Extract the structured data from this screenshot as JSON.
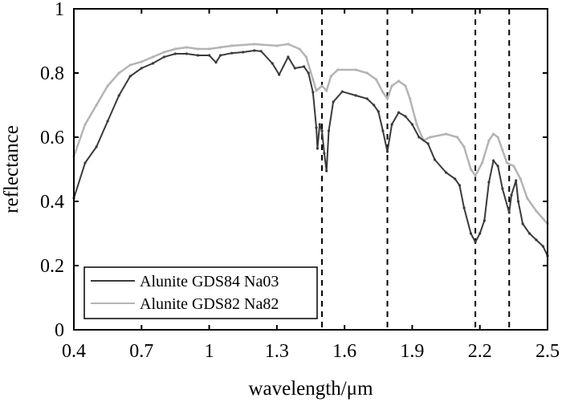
{
  "chart_data": {
    "type": "line",
    "title": "",
    "xlabel": "wavelength/μm",
    "ylabel": "reflectance",
    "xlim": [
      0.4,
      2.5
    ],
    "ylim": [
      0,
      1
    ],
    "xticks": [
      "0.4",
      "0.7",
      "1",
      "1.3",
      "1.6",
      "1.9",
      "2.2",
      "2.5"
    ],
    "yticks": [
      "0",
      "0.2",
      "0.4",
      "0.6",
      "0.8",
      "1"
    ],
    "grid": false,
    "legend_position": "bottom-left",
    "vlines": [
      1.5,
      1.79,
      2.18,
      2.33
    ],
    "series": [
      {
        "name": "Alunite GDS84 Na03",
        "color": "#3a3a3a",
        "x": [
          0.4,
          0.45,
          0.5,
          0.55,
          0.6,
          0.65,
          0.7,
          0.75,
          0.8,
          0.85,
          0.9,
          0.95,
          1.0,
          1.03,
          1.05,
          1.1,
          1.15,
          1.2,
          1.23,
          1.28,
          1.31,
          1.35,
          1.38,
          1.42,
          1.44,
          1.46,
          1.475,
          1.48,
          1.49,
          1.5,
          1.51,
          1.52,
          1.53,
          1.55,
          1.59,
          1.65,
          1.7,
          1.73,
          1.75,
          1.77,
          1.79,
          1.81,
          1.84,
          1.87,
          1.9,
          1.93,
          1.97,
          2.0,
          2.05,
          2.09,
          2.11,
          2.13,
          2.16,
          2.18,
          2.2,
          2.22,
          2.24,
          2.26,
          2.28,
          2.3,
          2.33,
          2.34,
          2.36,
          2.37,
          2.39,
          2.42,
          2.45,
          2.48,
          2.5
        ],
        "y": [
          0.41,
          0.52,
          0.57,
          0.65,
          0.73,
          0.79,
          0.815,
          0.83,
          0.85,
          0.86,
          0.86,
          0.855,
          0.855,
          0.833,
          0.855,
          0.862,
          0.865,
          0.87,
          0.868,
          0.83,
          0.795,
          0.85,
          0.815,
          0.82,
          0.8,
          0.74,
          0.63,
          0.565,
          0.64,
          0.62,
          0.55,
          0.495,
          0.62,
          0.71,
          0.742,
          0.73,
          0.72,
          0.7,
          0.68,
          0.62,
          0.555,
          0.64,
          0.677,
          0.665,
          0.64,
          0.6,
          0.58,
          0.53,
          0.49,
          0.47,
          0.45,
          0.38,
          0.3,
          0.273,
          0.3,
          0.34,
          0.46,
          0.527,
          0.51,
          0.44,
          0.365,
          0.42,
          0.465,
          0.4,
          0.33,
          0.3,
          0.28,
          0.26,
          0.23
        ]
      },
      {
        "name": "Alunite GDS82 Na82",
        "color": "#b4b4b4",
        "x": [
          0.4,
          0.45,
          0.5,
          0.55,
          0.6,
          0.65,
          0.7,
          0.75,
          0.8,
          0.85,
          0.9,
          0.95,
          1.0,
          1.05,
          1.1,
          1.2,
          1.3,
          1.35,
          1.4,
          1.43,
          1.46,
          1.475,
          1.5,
          1.52,
          1.54,
          1.57,
          1.65,
          1.7,
          1.74,
          1.77,
          1.79,
          1.81,
          1.84,
          1.87,
          1.89,
          1.92,
          1.95,
          1.98,
          2.05,
          2.1,
          2.13,
          2.16,
          2.18,
          2.21,
          2.24,
          2.26,
          2.28,
          2.3,
          2.32,
          2.35,
          2.38,
          2.41,
          2.45,
          2.5
        ],
        "y": [
          0.54,
          0.64,
          0.7,
          0.76,
          0.8,
          0.825,
          0.835,
          0.85,
          0.865,
          0.875,
          0.88,
          0.875,
          0.875,
          0.88,
          0.885,
          0.89,
          0.885,
          0.89,
          0.875,
          0.85,
          0.78,
          0.745,
          0.76,
          0.745,
          0.79,
          0.81,
          0.81,
          0.8,
          0.78,
          0.74,
          0.72,
          0.76,
          0.775,
          0.76,
          0.72,
          0.64,
          0.59,
          0.6,
          0.61,
          0.6,
          0.57,
          0.5,
          0.48,
          0.52,
          0.59,
          0.61,
          0.6,
          0.56,
          0.52,
          0.51,
          0.47,
          0.41,
          0.37,
          0.33
        ]
      }
    ]
  }
}
